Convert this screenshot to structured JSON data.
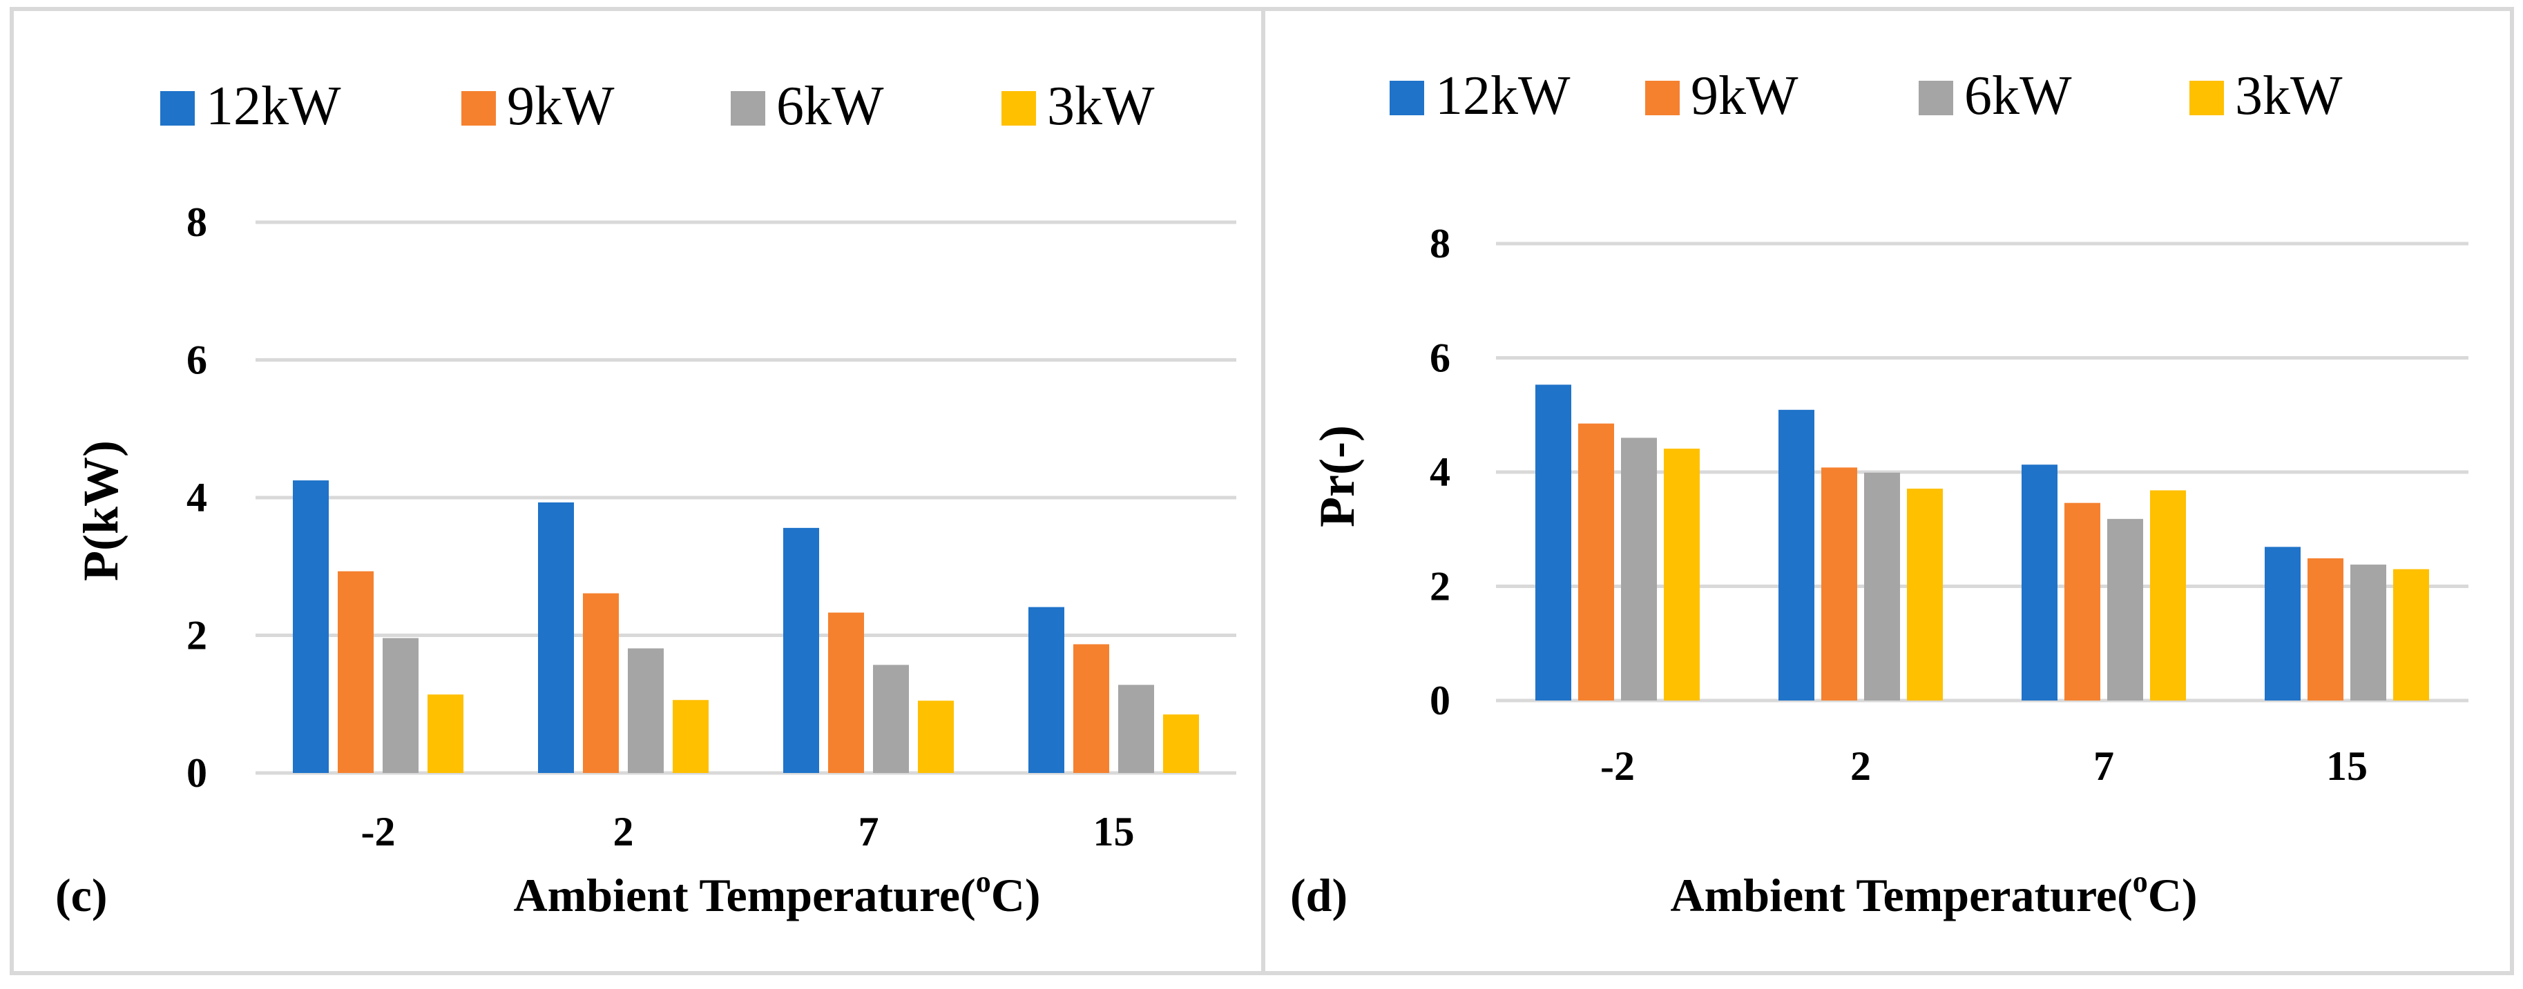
{
  "chart_data": [
    {
      "type": "bar",
      "panel_label": "(c)",
      "title": "",
      "xlabel": "Ambient Temperature(",
      "xlabel_sup": "o",
      "xlabel_end": "C)",
      "ylabel": "P(kW)",
      "ylim": [
        0,
        8
      ],
      "yticks": [
        "0",
        "2",
        "4",
        "6",
        "8"
      ],
      "categories": [
        "-2",
        "2",
        "7",
        "15"
      ],
      "legend_position": "top",
      "series": [
        {
          "name": "12kW",
          "color": "#1f73c9",
          "values": [
            4.25,
            3.93,
            3.56,
            2.41
          ]
        },
        {
          "name": "9kW",
          "color": "#f5812f",
          "values": [
            2.93,
            2.61,
            2.33,
            1.87
          ]
        },
        {
          "name": "6kW",
          "color": "#a5a5a5",
          "values": [
            1.96,
            1.81,
            1.57,
            1.28
          ]
        },
        {
          "name": "3kW",
          "color": "#ffc000",
          "values": [
            1.14,
            1.06,
            1.05,
            0.85
          ]
        }
      ]
    },
    {
      "type": "bar",
      "panel_label": "(d)",
      "title": "",
      "xlabel": "Ambient Temperature(",
      "xlabel_sup": "o",
      "xlabel_end": "C)",
      "ylabel": "Pr(-)",
      "ylim": [
        0,
        8
      ],
      "yticks": [
        "0",
        "2",
        "4",
        "6",
        "8"
      ],
      "categories": [
        "-2",
        "2",
        "7",
        "15"
      ],
      "legend_position": "top",
      "series": [
        {
          "name": "12kW",
          "color": "#1f73c9",
          "values": [
            5.53,
            5.09,
            4.13,
            2.69
          ]
        },
        {
          "name": "9kW",
          "color": "#f5812f",
          "values": [
            4.85,
            4.08,
            3.46,
            2.49
          ]
        },
        {
          "name": "6kW",
          "color": "#a5a5a5",
          "values": [
            4.6,
            3.99,
            3.18,
            2.38
          ]
        },
        {
          "name": "3kW",
          "color": "#ffc000",
          "values": [
            4.41,
            3.71,
            3.68,
            2.3
          ]
        }
      ]
    }
  ]
}
